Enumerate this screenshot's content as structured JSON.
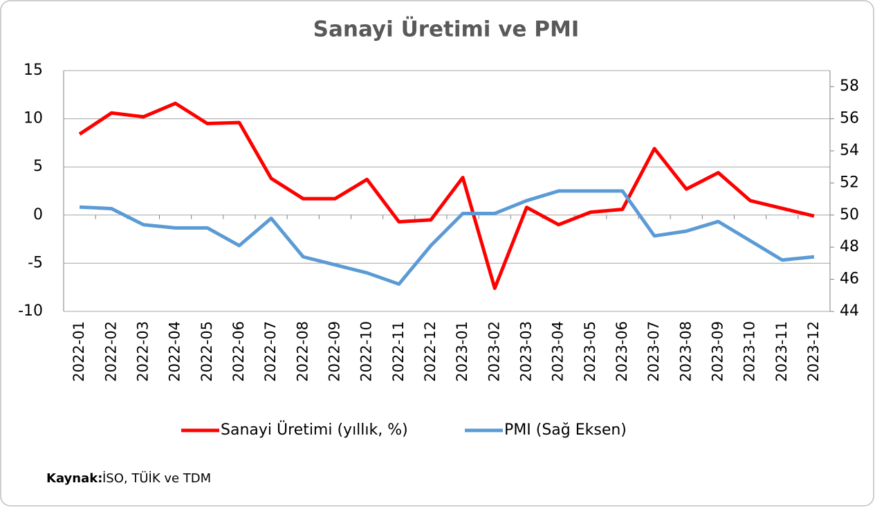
{
  "chart_data": {
    "type": "line",
    "title": "Sanayi Üretimi ve PMI",
    "categories": [
      "2022-01",
      "2022-02",
      "2022-03",
      "2022-04",
      "2022-05",
      "2022-06",
      "2022-07",
      "2022-08",
      "2022-09",
      "2022-10",
      "2022-11",
      "2022-12",
      "2023-01",
      "2023-02",
      "2023-03",
      "2023-04",
      "2023-05",
      "2023-06",
      "2023-07",
      "2023-08",
      "2023-09",
      "2023-10",
      "2023-11",
      "2023-12"
    ],
    "series": [
      {
        "name": "Sanayi Üretimi (yıllık, %)",
        "color": "#ff0000",
        "values": [
          8.4,
          10.6,
          10.2,
          11.6,
          9.5,
          9.6,
          3.8,
          1.7,
          1.7,
          3.7,
          -0.7,
          -0.5,
          3.9,
          -7.6,
          0.8,
          -1.0,
          0.3,
          0.6,
          6.9,
          2.7,
          4.4,
          1.5,
          0.7,
          -0.1
        ]
      },
      {
        "name": "PMI (Sağ Eksen)",
        "color": "#5b9bd5",
        "axis": "y2",
        "values": [
          50.5,
          50.4,
          49.4,
          49.2,
          49.2,
          48.1,
          49.8,
          47.4,
          46.9,
          46.4,
          45.7,
          48.1,
          50.1,
          50.1,
          50.9,
          51.5,
          51.5,
          51.5,
          48.7,
          49.0,
          49.6,
          48.4,
          47.2,
          47.4
        ]
      }
    ],
    "ylim": [
      -10,
      15
    ],
    "yticks": [
      -10,
      -5,
      0,
      5,
      10,
      15
    ],
    "y2lim": [
      44,
      59
    ],
    "y2ticks": [
      44,
      46,
      48,
      50,
      52,
      54,
      56,
      58
    ],
    "grid": true,
    "legend": "bottom",
    "source_label": "Kaynak:",
    "source": "İSO, TÜİK ve TDM"
  }
}
